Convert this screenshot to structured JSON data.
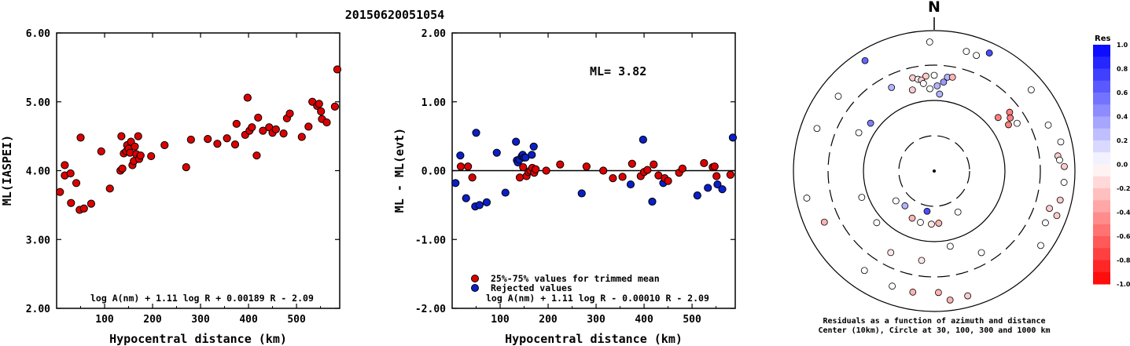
{
  "title": "20150620051054",
  "colors": {
    "accepted": "#dd0000",
    "rejected": "#0a1fc8"
  },
  "chart_data": [
    {
      "type": "scatter",
      "xlabel": "Hypocentral distance (km)",
      "ylabel": "ML(IASPEI)",
      "xlim": [
        0,
        590
      ],
      "ylim": [
        2.0,
        6.0
      ],
      "xticks": [
        "100",
        "200",
        "300",
        "400",
        "500"
      ],
      "yticks": [
        "2.00",
        "3.00",
        "4.00",
        "5.00",
        "6.00"
      ],
      "annotation": "log A(nm) + 1.11 log R + 0.00189 R - 2.09",
      "points": [
        [
          7,
          3.69
        ],
        [
          17,
          3.93
        ],
        [
          17,
          4.08
        ],
        [
          29,
          3.96
        ],
        [
          30,
          3.53
        ],
        [
          41,
          3.82
        ],
        [
          48,
          3.43
        ],
        [
          50,
          4.48
        ],
        [
          57,
          3.45
        ],
        [
          72,
          3.52
        ],
        [
          93,
          4.28
        ],
        [
          111,
          3.74
        ],
        [
          133,
          4.0
        ],
        [
          135,
          4.5
        ],
        [
          137,
          4.03
        ],
        [
          140,
          4.25
        ],
        [
          145,
          4.28
        ],
        [
          147,
          4.37
        ],
        [
          150,
          4.32
        ],
        [
          153,
          4.26
        ],
        [
          155,
          4.42
        ],
        [
          158,
          4.08
        ],
        [
          161,
          4.14
        ],
        [
          163,
          4.35
        ],
        [
          166,
          4.24
        ],
        [
          170,
          4.5
        ],
        [
          172,
          4.17
        ],
        [
          175,
          4.22
        ],
        [
          197,
          4.21
        ],
        [
          225,
          4.37
        ],
        [
          270,
          4.05
        ],
        [
          280,
          4.45
        ],
        [
          315,
          4.46
        ],
        [
          335,
          4.39
        ],
        [
          355,
          4.47
        ],
        [
          372,
          4.38
        ],
        [
          375,
          4.68
        ],
        [
          393,
          4.52
        ],
        [
          398,
          5.06
        ],
        [
          402,
          4.58
        ],
        [
          407,
          4.63
        ],
        [
          417,
          4.22
        ],
        [
          420,
          4.77
        ],
        [
          430,
          4.58
        ],
        [
          443,
          4.63
        ],
        [
          450,
          4.55
        ],
        [
          457,
          4.6
        ],
        [
          473,
          4.54
        ],
        [
          480,
          4.76
        ],
        [
          486,
          4.83
        ],
        [
          511,
          4.49
        ],
        [
          525,
          4.64
        ],
        [
          533,
          5.0
        ],
        [
          543,
          4.94
        ],
        [
          547,
          4.97
        ],
        [
          551,
          4.86
        ],
        [
          553,
          4.75
        ],
        [
          563,
          4.7
        ],
        [
          580,
          4.93
        ],
        [
          585,
          5.47
        ]
      ]
    },
    {
      "type": "scatter",
      "xlabel": "Hypocentral distance (km)",
      "ylabel": "ML - ML(evt)",
      "xlim": [
        0,
        590
      ],
      "ylim": [
        -2.0,
        2.0
      ],
      "xticks": [
        "100",
        "200",
        "300",
        "400",
        "500"
      ],
      "yticks": [
        "-2.00",
        "-1.00",
        "0.00",
        "1.00",
        "2.00"
      ],
      "ml_label": "ML= 3.82",
      "legend": [
        "25%-75% values for trimmed mean",
        "Rejected values"
      ],
      "annotation": "log A(nm) + 1.11 log R - 0.00010 R - 2.09",
      "accepted": [
        [
          18,
          0.06
        ],
        [
          33,
          0.06
        ],
        [
          42,
          -0.1
        ],
        [
          141,
          -0.1
        ],
        [
          148,
          0.05
        ],
        [
          155,
          -0.08
        ],
        [
          159,
          -0.02
        ],
        [
          163,
          0.0
        ],
        [
          167,
          0.04
        ],
        [
          171,
          -0.03
        ],
        [
          174,
          0.02
        ],
        [
          196,
          0.0
        ],
        [
          225,
          0.09
        ],
        [
          280,
          0.06
        ],
        [
          315,
          0.0
        ],
        [
          335,
          -0.11
        ],
        [
          355,
          -0.09
        ],
        [
          375,
          0.1
        ],
        [
          393,
          -0.08
        ],
        [
          400,
          -0.02
        ],
        [
          407,
          0.01
        ],
        [
          420,
          0.09
        ],
        [
          430,
          -0.07
        ],
        [
          443,
          -0.11
        ],
        [
          450,
          -0.15
        ],
        [
          473,
          -0.03
        ],
        [
          480,
          0.03
        ],
        [
          525,
          0.11
        ],
        [
          543,
          0.05
        ],
        [
          547,
          0.06
        ],
        [
          551,
          -0.08
        ],
        [
          580,
          -0.06
        ]
      ],
      "rejected": [
        [
          7,
          -0.18
        ],
        [
          17,
          0.22
        ],
        [
          29,
          -0.4
        ],
        [
          48,
          -0.52
        ],
        [
          50,
          0.55
        ],
        [
          57,
          -0.5
        ],
        [
          72,
          -0.46
        ],
        [
          93,
          0.26
        ],
        [
          111,
          -0.32
        ],
        [
          133,
          0.42
        ],
        [
          135,
          0.15
        ],
        [
          137,
          0.12
        ],
        [
          140,
          0.16
        ],
        [
          145,
          0.21
        ],
        [
          147,
          0.23
        ],
        [
          150,
          0.19
        ],
        [
          153,
          0.19
        ],
        [
          166,
          0.23
        ],
        [
          170,
          0.35
        ],
        [
          270,
          -0.33
        ],
        [
          372,
          -0.2
        ],
        [
          398,
          0.45
        ],
        [
          417,
          -0.45
        ],
        [
          440,
          -0.18
        ],
        [
          511,
          -0.36
        ],
        [
          533,
          -0.25
        ],
        [
          553,
          -0.2
        ],
        [
          563,
          -0.27
        ],
        [
          585,
          0.48
        ]
      ]
    },
    {
      "type": "scatter",
      "subtype": "polar",
      "north_label": "N",
      "caption_line1": "Residuals as a function of azimuth and distance",
      "caption_line2": "Center (10km), Circle at 30, 100, 300 and 1000 km",
      "points": [
        [
          358,
          1000,
          0.0
        ],
        [
          15,
          1000,
          0.0
        ],
        [
          20,
          1000,
          0.0
        ],
        [
          25,
          1000,
          0.7
        ],
        [
          50,
          1000,
          0.0
        ],
        [
          68,
          1000,
          0.0
        ],
        [
          77,
          1000,
          0.0
        ],
        [
          83,
          1000,
          -0.2
        ],
        [
          85,
          1000,
          0.0
        ],
        [
          88,
          1000,
          -0.2
        ],
        [
          95,
          1000,
          0.0
        ],
        [
          103,
          1000,
          -0.2
        ],
        [
          108,
          1000,
          -0.2
        ],
        [
          110,
          1000,
          -0.2
        ],
        [
          115,
          1000,
          0.0
        ],
        [
          125,
          1000,
          0.0
        ],
        [
          165,
          1000,
          -0.2
        ],
        [
          173,
          1000,
          -0.3
        ],
        [
          178,
          1000,
          -0.3
        ],
        [
          190,
          1000,
          -0.3
        ],
        [
          200,
          1000,
          0.0
        ],
        [
          215,
          1000,
          0.0
        ],
        [
          245,
          1000,
          -0.3
        ],
        [
          258,
          1000,
          0.0
        ],
        [
          290,
          1000,
          0.0
        ],
        [
          308,
          1000,
          0.0
        ],
        [
          328,
          1000,
          0.6
        ],
        [
          60,
          300,
          0.0
        ],
        [
          50,
          300,
          -0.5
        ],
        [
          52,
          300,
          -0.5
        ],
        [
          55,
          300,
          -0.5
        ],
        [
          58,
          300,
          -0.5
        ],
        [
          345,
          300,
          -0.2
        ],
        [
          347,
          300,
          -0.2
        ],
        [
          350,
          300,
          0.0
        ],
        [
          352,
          300,
          -0.2
        ],
        [
          353,
          300,
          0.0
        ],
        [
          355,
          300,
          -0.2
        ],
        [
          357,
          300,
          0.0
        ],
        [
          0,
          300,
          0.0
        ],
        [
          2,
          300,
          0.3
        ],
        [
          4,
          300,
          0.3
        ],
        [
          6,
          300,
          0.4
        ],
        [
          8,
          300,
          0.3
        ],
        [
          11,
          300,
          -0.3
        ],
        [
          333,
          300,
          0.3
        ],
        [
          297,
          300,
          0.0
        ],
        [
          307,
          300,
          0.5
        ],
        [
          150,
          300,
          0.0
        ],
        [
          168,
          300,
          0.0
        ],
        [
          188,
          300,
          -0.1
        ],
        [
          208,
          300,
          -0.1
        ],
        [
          228,
          300,
          0.0
        ],
        [
          250,
          300,
          0.0
        ],
        [
          150,
          100,
          0.0
        ],
        [
          175,
          100,
          -0.3
        ],
        [
          183,
          100,
          -0.1
        ],
        [
          190,
          100,
          0.7
        ],
        [
          195,
          100,
          0.0
        ],
        [
          205,
          100,
          -0.3
        ],
        [
          220,
          100,
          0.3
        ],
        [
          232,
          100,
          0.0
        ]
      ],
      "colorbar": {
        "title": "Res",
        "labels": [
          "1.0",
          "0.8",
          "0.6",
          "0.4",
          "0.2",
          "0.0",
          "-0.2",
          "-0.4",
          "-0.6",
          "-0.8",
          "-1.0"
        ]
      }
    }
  ]
}
